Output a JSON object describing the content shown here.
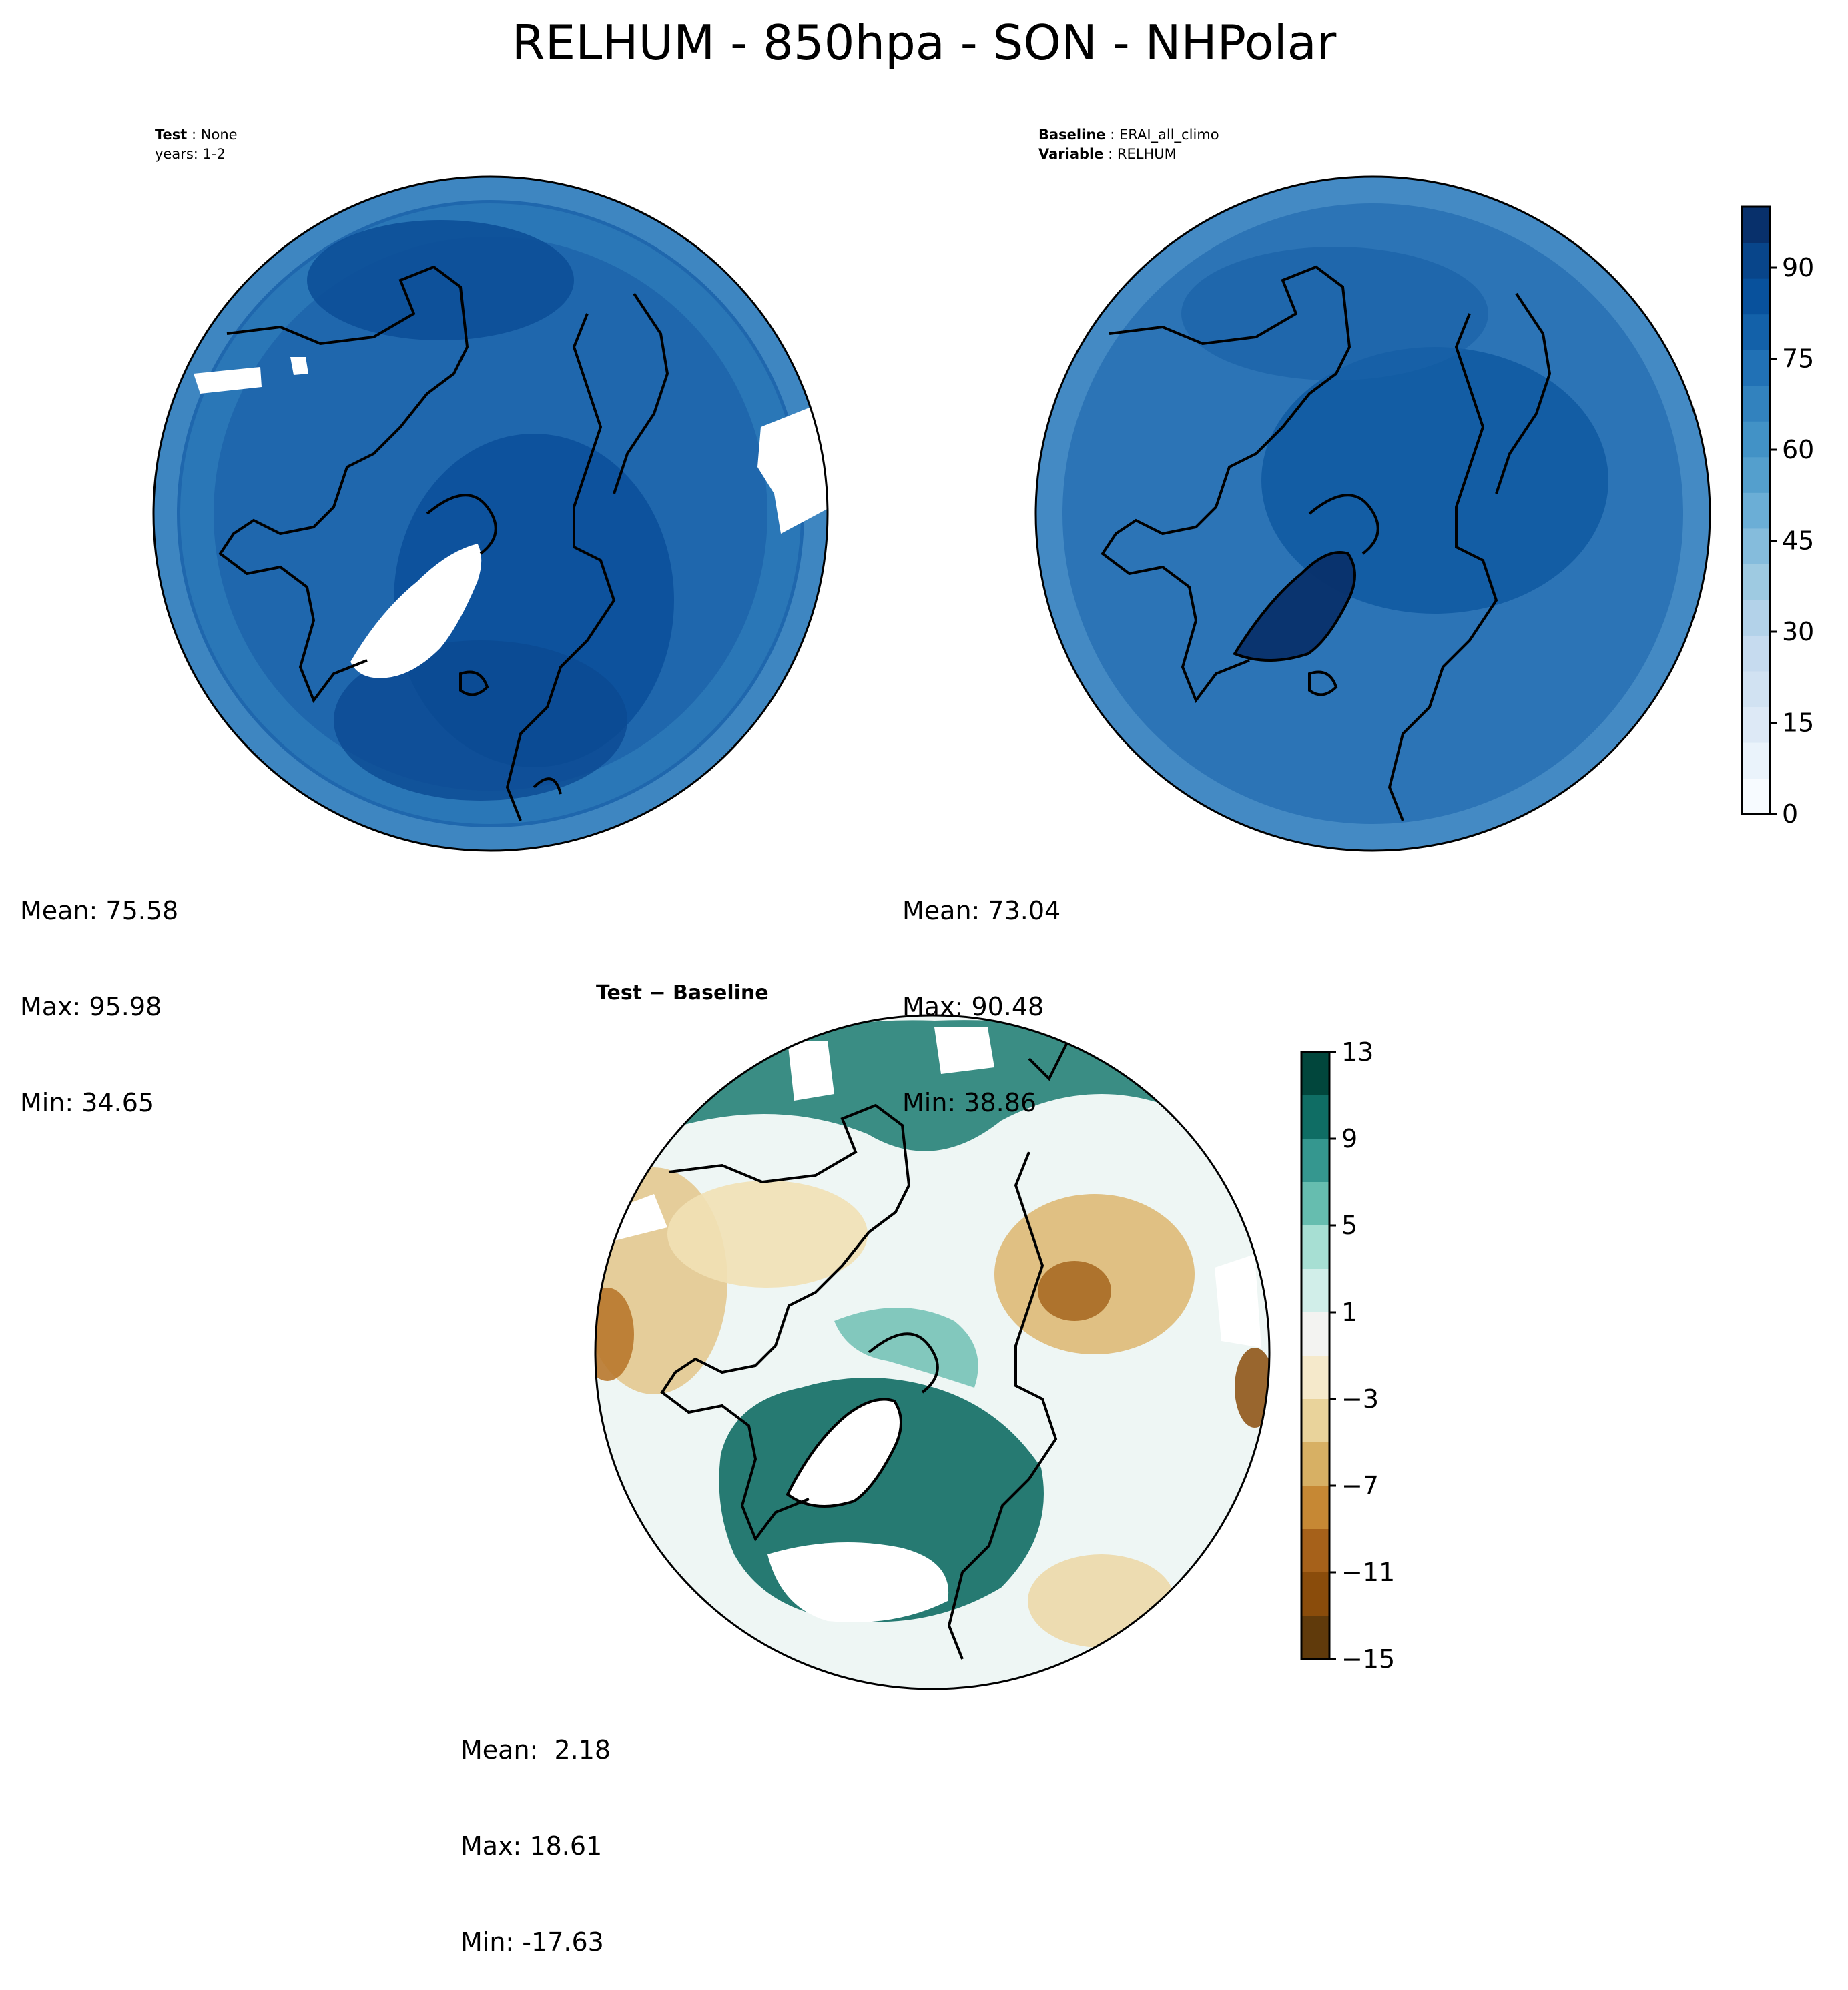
{
  "figure": {
    "title": "RELHUM - 850hpa - SON - NHPolar"
  },
  "panels": {
    "test": {
      "meta": [
        {
          "key": "Test",
          "value": "None"
        },
        {
          "key": "",
          "value": "years: 1-2"
        }
      ],
      "stats": {
        "mean": "Mean: 75.58",
        "max": "Max: 95.98",
        "min": "Min: 34.65"
      }
    },
    "baseline": {
      "meta": [
        {
          "key": "Baseline",
          "value": "ERAI_all_climo"
        },
        {
          "key": "Variable",
          "value": "RELHUM"
        }
      ],
      "stats": {
        "mean": "Mean: 73.04",
        "max": "Max: 90.48",
        "min": "Min: 38.86"
      }
    },
    "difference": {
      "title": "Test − Baseline",
      "stats": {
        "mean": "Mean:  2.18",
        "max": "Max: 18.61",
        "min": "Min: -17.63"
      }
    }
  },
  "colorbars": {
    "relhum": {
      "ticks": [
        0,
        15,
        30,
        45,
        60,
        75,
        90
      ],
      "range": [
        0,
        100
      ],
      "colors": [
        "#f7fbff",
        "#eaf3fb",
        "#dde9f6",
        "#d1e2f2",
        "#c6dbef",
        "#b3d2e9",
        "#9ecae1",
        "#85bcdc",
        "#6baed6",
        "#549fcd",
        "#4292c6",
        "#3282be",
        "#2171b5",
        "#1361a9",
        "#08519c",
        "#08458a",
        "#08306b"
      ]
    },
    "diff": {
      "ticks": [
        "13",
        "9",
        "5",
        "1",
        "−3",
        "−7",
        "−11",
        "−15"
      ],
      "colors": [
        "#01463c",
        "#0f6d64",
        "#35978f",
        "#66bdaf",
        "#a7dfd3",
        "#d1eee9",
        "#f3f3f1",
        "#f5e9cb",
        "#e9d39b",
        "#d7b064",
        "#c68834",
        "#a6611a",
        "#8a4c0b",
        "#603a0b"
      ]
    },
    "map_colors": {
      "test_base": "#1f67ad",
      "baseline_base": "#2c74b6",
      "diff_base": "#eef6f4",
      "coast": "#000000"
    }
  }
}
